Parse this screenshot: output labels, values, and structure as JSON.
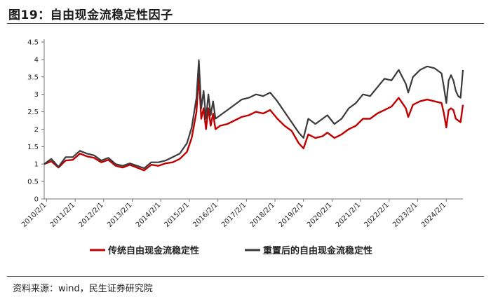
{
  "header": {
    "title": "图19：自由现金流稳定性因子"
  },
  "footer": {
    "source": "资料来源：wind，民生证券研究院"
  },
  "chart_data": {
    "type": "line",
    "y_ticks": [
      "0",
      "0.5",
      "1",
      "1.5",
      "2",
      "2.5",
      "3",
      "3.5",
      "4",
      "4.5"
    ],
    "ylim": [
      0,
      4.5
    ],
    "x_ticks": [
      "2010/2/1",
      "2011/2/1",
      "2012/2/1",
      "2013/2/1",
      "2014/2/1",
      "2015/2/1",
      "2016/2/1",
      "2017/2/1",
      "2018/2/1",
      "2019/2/1",
      "2020/2/1",
      "2021/2/1",
      "2022/2/1",
      "2023/2/1",
      "2024/2/1"
    ],
    "xlim": [
      "2010-01",
      "2024-09"
    ],
    "grid": false,
    "legend_position": "bottom",
    "colors": {
      "red": "#c00000",
      "black": "#3a3a3a"
    },
    "series": [
      {
        "name": "传统自由现金流稳定性",
        "color": "#c00000",
        "points": [
          [
            "2010-01",
            1.0
          ],
          [
            "2010-04",
            1.08
          ],
          [
            "2010-07",
            0.9
          ],
          [
            "2010-10",
            1.1
          ],
          [
            "2011-01",
            1.12
          ],
          [
            "2011-04",
            1.3
          ],
          [
            "2011-07",
            1.22
          ],
          [
            "2011-10",
            1.18
          ],
          [
            "2012-01",
            1.05
          ],
          [
            "2012-04",
            1.12
          ],
          [
            "2012-07",
            0.95
          ],
          [
            "2012-10",
            0.9
          ],
          [
            "2013-01",
            0.98
          ],
          [
            "2013-04",
            0.9
          ],
          [
            "2013-07",
            0.82
          ],
          [
            "2013-10",
            0.98
          ],
          [
            "2014-01",
            0.95
          ],
          [
            "2014-04",
            1.02
          ],
          [
            "2014-07",
            1.05
          ],
          [
            "2014-10",
            1.15
          ],
          [
            "2015-01",
            1.35
          ],
          [
            "2015-03",
            1.75
          ],
          [
            "2015-05",
            2.5
          ],
          [
            "2015-06",
            3.55
          ],
          [
            "2015-07",
            2.3
          ],
          [
            "2015-08",
            2.6
          ],
          [
            "2015-09",
            2.0
          ],
          [
            "2015-10",
            2.6
          ],
          [
            "2015-11",
            2.1
          ],
          [
            "2015-12",
            2.45
          ],
          [
            "2016-01",
            2.0
          ],
          [
            "2016-03",
            2.1
          ],
          [
            "2016-06",
            2.15
          ],
          [
            "2016-09",
            2.25
          ],
          [
            "2016-12",
            2.35
          ],
          [
            "2017-03",
            2.4
          ],
          [
            "2017-06",
            2.5
          ],
          [
            "2017-09",
            2.45
          ],
          [
            "2017-12",
            2.55
          ],
          [
            "2018-03",
            2.3
          ],
          [
            "2018-06",
            2.1
          ],
          [
            "2018-09",
            1.95
          ],
          [
            "2018-12",
            1.6
          ],
          [
            "2019-02",
            1.45
          ],
          [
            "2019-04",
            1.85
          ],
          [
            "2019-07",
            1.75
          ],
          [
            "2019-10",
            1.8
          ],
          [
            "2019-12",
            1.9
          ],
          [
            "2020-03",
            1.75
          ],
          [
            "2020-06",
            1.85
          ],
          [
            "2020-09",
            2.0
          ],
          [
            "2020-12",
            2.1
          ],
          [
            "2021-03",
            2.3
          ],
          [
            "2021-06",
            2.3
          ],
          [
            "2021-09",
            2.45
          ],
          [
            "2021-12",
            2.55
          ],
          [
            "2022-03",
            2.65
          ],
          [
            "2022-06",
            2.9
          ],
          [
            "2022-09",
            2.6
          ],
          [
            "2022-10",
            2.35
          ],
          [
            "2022-12",
            2.7
          ],
          [
            "2023-03",
            2.8
          ],
          [
            "2023-06",
            2.85
          ],
          [
            "2023-09",
            2.8
          ],
          [
            "2023-12",
            2.75
          ],
          [
            "2024-01",
            2.45
          ],
          [
            "2024-02",
            2.05
          ],
          [
            "2024-03",
            2.55
          ],
          [
            "2024-04",
            2.6
          ],
          [
            "2024-05",
            2.55
          ],
          [
            "2024-06",
            2.3
          ],
          [
            "2024-07",
            2.25
          ],
          [
            "2024-08",
            2.2
          ],
          [
            "2024-09",
            2.7
          ]
        ]
      },
      {
        "name": "重置后的自由现金流稳定性",
        "color": "#3a3a3a",
        "points": [
          [
            "2010-01",
            1.0
          ],
          [
            "2010-04",
            1.15
          ],
          [
            "2010-07",
            0.92
          ],
          [
            "2010-10",
            1.2
          ],
          [
            "2011-01",
            1.2
          ],
          [
            "2011-04",
            1.38
          ],
          [
            "2011-07",
            1.3
          ],
          [
            "2011-10",
            1.25
          ],
          [
            "2012-01",
            1.1
          ],
          [
            "2012-04",
            1.18
          ],
          [
            "2012-07",
            1.0
          ],
          [
            "2012-10",
            0.95
          ],
          [
            "2013-01",
            1.02
          ],
          [
            "2013-04",
            0.95
          ],
          [
            "2013-07",
            0.88
          ],
          [
            "2013-10",
            1.05
          ],
          [
            "2014-01",
            1.05
          ],
          [
            "2014-04",
            1.1
          ],
          [
            "2014-07",
            1.2
          ],
          [
            "2014-10",
            1.3
          ],
          [
            "2015-01",
            1.6
          ],
          [
            "2015-03",
            2.05
          ],
          [
            "2015-05",
            2.9
          ],
          [
            "2015-06",
            3.98
          ],
          [
            "2015-07",
            2.6
          ],
          [
            "2015-08",
            3.1
          ],
          [
            "2015-09",
            2.3
          ],
          [
            "2015-10",
            3.0
          ],
          [
            "2015-11",
            2.4
          ],
          [
            "2015-12",
            2.8
          ],
          [
            "2016-01",
            2.3
          ],
          [
            "2016-03",
            2.4
          ],
          [
            "2016-06",
            2.55
          ],
          [
            "2016-09",
            2.7
          ],
          [
            "2016-12",
            2.85
          ],
          [
            "2017-03",
            2.9
          ],
          [
            "2017-06",
            3.0
          ],
          [
            "2017-09",
            2.95
          ],
          [
            "2017-12",
            3.05
          ],
          [
            "2018-03",
            2.8
          ],
          [
            "2018-06",
            2.5
          ],
          [
            "2018-09",
            2.2
          ],
          [
            "2018-12",
            1.9
          ],
          [
            "2019-02",
            1.75
          ],
          [
            "2019-04",
            2.3
          ],
          [
            "2019-07",
            2.15
          ],
          [
            "2019-10",
            2.3
          ],
          [
            "2019-12",
            2.4
          ],
          [
            "2020-03",
            2.15
          ],
          [
            "2020-06",
            2.3
          ],
          [
            "2020-09",
            2.6
          ],
          [
            "2020-12",
            2.75
          ],
          [
            "2021-03",
            3.0
          ],
          [
            "2021-06",
            2.95
          ],
          [
            "2021-09",
            3.2
          ],
          [
            "2021-12",
            3.45
          ],
          [
            "2022-03",
            3.4
          ],
          [
            "2022-06",
            3.7
          ],
          [
            "2022-09",
            3.3
          ],
          [
            "2022-10",
            3.05
          ],
          [
            "2022-12",
            3.5
          ],
          [
            "2023-03",
            3.7
          ],
          [
            "2023-06",
            3.8
          ],
          [
            "2023-09",
            3.75
          ],
          [
            "2023-12",
            3.6
          ],
          [
            "2024-01",
            3.2
          ],
          [
            "2024-02",
            2.75
          ],
          [
            "2024-03",
            3.4
          ],
          [
            "2024-04",
            3.55
          ],
          [
            "2024-05",
            3.4
          ],
          [
            "2024-06",
            3.1
          ],
          [
            "2024-07",
            2.95
          ],
          [
            "2024-08",
            2.9
          ],
          [
            "2024-09",
            3.7
          ]
        ]
      }
    ]
  }
}
